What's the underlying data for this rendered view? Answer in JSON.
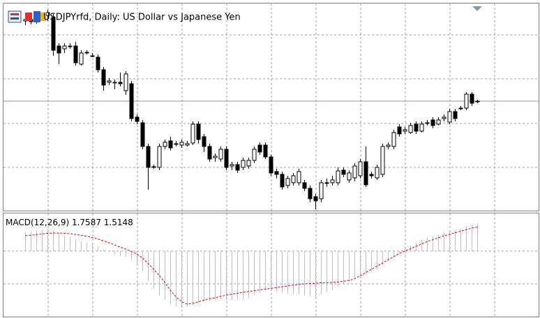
{
  "chart_data": [
    {
      "type": "candlestick",
      "title": "USDJPYrfd, Daily:  US Dollar vs Japanese Yen",
      "up_color": "#ffffff",
      "down_color": "#000000",
      "ylim": [
        0,
        297
      ],
      "ohlc": [
        [
          272,
          280,
          266,
          274
        ],
        [
          274,
          278,
          267,
          271
        ],
        [
          271,
          280,
          268,
          277
        ],
        [
          277,
          284,
          274,
          280
        ],
        [
          280,
          288,
          272,
          284
        ],
        [
          277,
          282,
          222,
          230
        ],
        [
          236,
          240,
          210,
          226
        ],
        [
          232,
          240,
          226,
          236
        ],
        [
          236,
          240,
          232,
          235
        ],
        [
          236,
          242,
          208,
          212
        ],
        [
          210,
          230,
          208,
          226
        ],
        [
          226,
          230,
          224,
          227
        ],
        [
          222,
          226,
          220,
          222
        ],
        [
          220,
          224,
          198,
          202
        ],
        [
          202,
          206,
          172,
          180
        ],
        [
          184,
          190,
          180,
          186
        ],
        [
          184,
          188,
          174,
          183
        ],
        [
          184,
          198,
          178,
          182
        ],
        [
          172,
          200,
          166,
          196
        ],
        [
          182,
          186,
          128,
          132
        ],
        [
          134,
          138,
          124,
          128
        ],
        [
          126,
          130,
          88,
          92
        ],
        [
          92,
          96,
          30,
          62
        ],
        [
          62,
          66,
          60,
          63
        ],
        [
          62,
          96,
          58,
          92
        ],
        [
          92,
          102,
          88,
          98
        ],
        [
          100,
          106,
          86,
          90
        ],
        [
          96,
          100,
          92,
          95
        ],
        [
          94,
          102,
          90,
          98
        ],
        [
          94,
          100,
          92,
          96
        ],
        [
          97,
          128,
          94,
          124
        ],
        [
          124,
          128,
          96,
          102
        ],
        [
          106,
          110,
          84,
          92
        ],
        [
          92,
          96,
          70,
          74
        ],
        [
          76,
          82,
          70,
          78
        ],
        [
          74,
          92,
          70,
          88
        ],
        [
          88,
          92,
          58,
          62
        ],
        [
          64,
          70,
          58,
          66
        ],
        [
          66,
          70,
          54,
          58
        ],
        [
          62,
          76,
          58,
          72
        ],
        [
          64,
          76,
          60,
          72
        ],
        [
          72,
          92,
          68,
          88
        ],
        [
          94,
          98,
          80,
          84
        ],
        [
          94,
          98,
          74,
          77
        ],
        [
          77,
          80,
          50,
          54
        ],
        [
          56,
          60,
          46,
          52
        ],
        [
          52,
          56,
          30,
          34
        ],
        [
          36,
          50,
          32,
          46
        ],
        [
          40,
          54,
          36,
          50
        ],
        [
          40,
          60,
          36,
          56
        ],
        [
          40,
          44,
          28,
          32
        ],
        [
          32,
          36,
          12,
          17
        ],
        [
          20,
          24,
          2,
          14
        ],
        [
          17,
          44,
          12,
          40
        ],
        [
          40,
          46,
          34,
          39
        ],
        [
          40,
          50,
          36,
          44
        ],
        [
          40,
          62,
          36,
          57
        ],
        [
          58,
          62,
          48,
          52
        ],
        [
          44,
          58,
          40,
          54
        ],
        [
          47,
          68,
          42,
          64
        ],
        [
          50,
          74,
          46,
          70
        ],
        [
          70,
          92,
          34,
          37
        ],
        [
          52,
          56,
          46,
          50
        ],
        [
          47,
          66,
          44,
          62
        ],
        [
          52,
          96,
          48,
          92
        ],
        [
          92,
          98,
          88,
          94
        ],
        [
          92,
          116,
          88,
          112
        ],
        [
          120,
          124,
          106,
          110
        ],
        [
          114,
          120,
          110,
          116
        ],
        [
          112,
          126,
          110,
          122
        ],
        [
          124,
          128,
          110,
          114
        ],
        [
          114,
          128,
          112,
          124
        ],
        [
          126,
          130,
          122,
          126
        ],
        [
          130,
          134,
          118,
          122
        ],
        [
          124,
          134,
          122,
          130
        ],
        [
          132,
          138,
          128,
          134
        ],
        [
          127,
          146,
          124,
          142
        ],
        [
          142,
          146,
          128,
          132
        ],
        [
          146,
          150,
          144,
          147
        ],
        [
          147,
          170,
          144,
          167
        ],
        [
          167,
          170,
          150,
          154
        ],
        [
          156,
          159,
          154,
          157
        ]
      ]
    },
    {
      "type": "macd",
      "label": "MACD(12,26,9)",
      "histogram_color": "#c0c0c0",
      "signal_color": "#e00000",
      "ylim": [
        -4.05,
        2.42
      ],
      "histogram": [
        1.2,
        1.25,
        1.3,
        1.35,
        1.4,
        1.3,
        1.15,
        1.0,
        0.9,
        0.75,
        0.65,
        0.55,
        0.45,
        0.3,
        0.1,
        -0.05,
        -0.2,
        -0.3,
        -0.35,
        -0.6,
        -0.9,
        -1.3,
        -1.9,
        -2.4,
        -2.8,
        -3.1,
        -3.35,
        -3.5,
        -3.55,
        -3.55,
        -3.4,
        -3.3,
        -3.2,
        -3.15,
        -3.1,
        -3.05,
        -3.1,
        -3.1,
        -3.1,
        -3.05,
        -2.95,
        -2.8,
        -2.65,
        -2.5,
        -2.5,
        -2.55,
        -2.65,
        -2.7,
        -2.75,
        -2.75,
        -2.8,
        -2.85,
        -2.9,
        -2.75,
        -2.6,
        -2.45,
        -2.25,
        -2.1,
        -1.95,
        -1.75,
        -1.55,
        -1.45,
        -1.3,
        -1.15,
        -0.9,
        -0.65,
        -0.4,
        -0.1,
        0.15,
        0.35,
        0.55,
        0.7,
        0.85,
        0.95,
        1.05,
        1.15,
        1.25,
        1.3,
        1.4,
        1.6,
        1.7,
        1.7587
      ],
      "signal": [
        0.97,
        1.0,
        1.04,
        1.08,
        1.12,
        1.14,
        1.14,
        1.12,
        1.09,
        1.05,
        0.99,
        0.93,
        0.85,
        0.76,
        0.65,
        0.52,
        0.38,
        0.24,
        0.12,
        -0.03,
        -0.2,
        -0.45,
        -0.8,
        -1.15,
        -1.55,
        -2.0,
        -2.5,
        -2.9,
        -3.2,
        -3.35,
        -3.3,
        -3.2,
        -3.1,
        -3.0,
        -2.95,
        -2.85,
        -2.78,
        -2.72,
        -2.66,
        -2.6,
        -2.55,
        -2.5,
        -2.45,
        -2.4,
        -2.35,
        -2.3,
        -2.25,
        -2.2,
        -2.15,
        -2.1,
        -2.07,
        -2.05,
        -2.03,
        -2.0,
        -2.0,
        -1.98,
        -1.95,
        -1.9,
        -1.85,
        -1.75,
        -1.55,
        -1.35,
        -1.15,
        -0.95,
        -0.75,
        -0.55,
        -0.35,
        -0.15,
        0.0,
        0.15,
        0.3,
        0.45,
        0.6,
        0.72,
        0.84,
        0.96,
        1.06,
        1.16,
        1.26,
        1.36,
        1.45,
        1.5148
      ]
    }
  ]
}
